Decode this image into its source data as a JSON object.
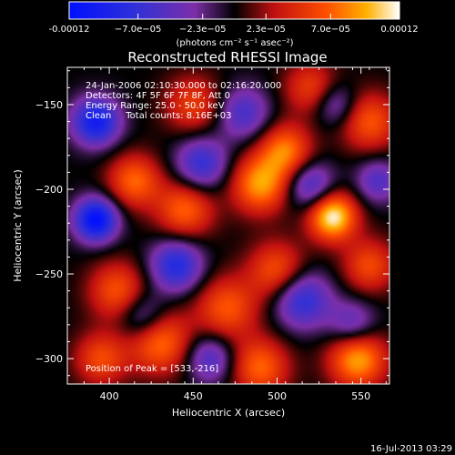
{
  "chart_data": {
    "type": "heatmap",
    "title": "Reconstructed RHESSI Image",
    "xlabel": "Heliocentric X (arcsec)",
    "ylabel": "Heliocentric Y (arcsec)",
    "xlim": [
      375,
      567
    ],
    "ylim": [
      -315,
      -128
    ],
    "x_ticks": [
      400,
      450,
      500,
      550
    ],
    "y_ticks": [
      -150,
      -200,
      -250,
      -300
    ],
    "colorbar": {
      "range": [
        -0.00012,
        0.00012
      ],
      "tick_values": [
        -0.00012,
        -7e-05,
        -2.3e-05,
        2.3e-05,
        7e-05,
        0.00012
      ],
      "tick_labels": [
        "-0.00012",
        "−7.0e−05",
        "−2.3e−05",
        "2.3e−05",
        "7.0e−05",
        "0.00012"
      ],
      "units_label": "(photons cm⁻² s⁻¹ asec⁻²)"
    },
    "info_lines": [
      "24-Jan-2006 02:10:30.000 to 02:16:20.000",
      "Detectors: 4F 5F 6F 7F 8F, Att 0",
      "Energy Range: 25.0 - 50.0 keV",
      "Clean     Total counts: 8.16E+03"
    ],
    "peak_text": "Position of Peak = [533,-216]",
    "peak": {
      "x": 533,
      "y": -216
    },
    "sources": [
      {
        "x": 533,
        "y": -216,
        "amp": 1.0,
        "sigma": 10
      },
      {
        "x": 548,
        "y": -300,
        "amp": 0.8,
        "sigma": 12
      },
      {
        "x": 490,
        "y": -197,
        "amp": 0.75,
        "sigma": 12
      },
      {
        "x": 505,
        "y": -177,
        "amp": 0.65,
        "sigma": 11
      },
      {
        "x": 445,
        "y": -212,
        "amp": 0.6,
        "sigma": 12
      },
      {
        "x": 500,
        "y": -248,
        "amp": 0.55,
        "sigma": 12
      },
      {
        "x": 470,
        "y": -270,
        "amp": 0.55,
        "sigma": 13
      },
      {
        "x": 415,
        "y": -195,
        "amp": 0.6,
        "sigma": 11
      },
      {
        "x": 405,
        "y": -260,
        "amp": 0.55,
        "sigma": 12
      },
      {
        "x": 430,
        "y": -290,
        "amp": 0.65,
        "sigma": 13
      },
      {
        "x": 490,
        "y": -305,
        "amp": 0.6,
        "sigma": 12
      },
      {
        "x": 555,
        "y": -160,
        "amp": 0.55,
        "sigma": 12
      },
      {
        "x": 395,
        "y": -300,
        "amp": 0.5,
        "sigma": 11
      },
      {
        "x": 520,
        "y": -140,
        "amp": 0.45,
        "sigma": 11
      },
      {
        "x": 450,
        "y": -150,
        "amp": 0.45,
        "sigma": 12
      },
      {
        "x": 555,
        "y": -245,
        "amp": 0.5,
        "sigma": 11
      },
      {
        "x": 392,
        "y": -218,
        "amp": -1.0,
        "sigma": 9
      },
      {
        "x": 392,
        "y": -160,
        "amp": -0.85,
        "sigma": 10
      },
      {
        "x": 440,
        "y": -245,
        "amp": -0.7,
        "sigma": 11
      },
      {
        "x": 455,
        "y": -185,
        "amp": -0.6,
        "sigma": 11
      },
      {
        "x": 515,
        "y": -265,
        "amp": -0.65,
        "sigma": 12
      },
      {
        "x": 520,
        "y": -198,
        "amp": -0.55,
        "sigma": 10
      },
      {
        "x": 480,
        "y": -155,
        "amp": -0.5,
        "sigma": 11
      },
      {
        "x": 545,
        "y": -280,
        "amp": -0.45,
        "sigma": 10
      },
      {
        "x": 460,
        "y": -300,
        "amp": -0.5,
        "sigma": 10
      },
      {
        "x": 420,
        "y": -275,
        "amp": -0.45,
        "sigma": 10
      },
      {
        "x": 560,
        "y": -195,
        "amp": -0.45,
        "sigma": 9
      },
      {
        "x": 535,
        "y": -150,
        "amp": -0.4,
        "sigma": 9
      }
    ]
  },
  "footer_timestamp": "16-Jul-2013 03:29"
}
